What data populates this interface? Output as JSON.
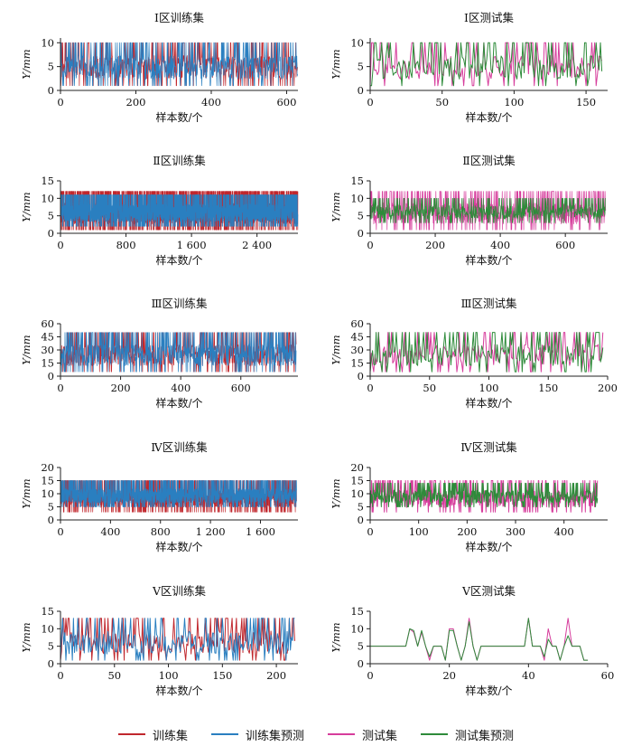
{
  "colors": {
    "train": "#c0272d",
    "train_pred": "#2a7fc0",
    "test": "#d63d9c",
    "test_pred": "#2e8b3a",
    "axis": "#222222"
  },
  "legend": [
    {
      "label": "训练集",
      "color": "#c0272d"
    },
    {
      "label": "训练集预测",
      "color": "#2a7fc0"
    },
    {
      "label": "测试集",
      "color": "#d63d9c"
    },
    {
      "label": "测试集预测",
      "color": "#2e8b3a"
    }
  ],
  "chart_data": [
    {
      "type": "line",
      "title": "Ⅰ区训练集",
      "xlabel": "样本数/个",
      "ylabel": "Y/mm",
      "xlim": [
        0,
        630
      ],
      "ylim": [
        0,
        11
      ],
      "xticks": [
        0,
        200,
        400,
        600
      ],
      "xtick_labels": [
        "0",
        "200",
        "400",
        "600"
      ],
      "yticks": [
        0,
        5,
        10
      ],
      "series": [
        {
          "name": "训练集",
          "kind": "train",
          "n": 630,
          "min": 1,
          "max": 10,
          "seed": 11
        },
        {
          "name": "训练集预测",
          "kind": "train_pred",
          "n": 630,
          "min": 1,
          "max": 10,
          "seed": 12
        }
      ]
    },
    {
      "type": "line",
      "title": "Ⅰ区测试集",
      "xlabel": "样本数/个",
      "ylabel": "Y/mm",
      "xlim": [
        0,
        165
      ],
      "ylim": [
        0,
        11
      ],
      "xticks": [
        0,
        50,
        100,
        150
      ],
      "xtick_labels": [
        "0",
        "50",
        "100",
        "150"
      ],
      "yticks": [
        0,
        5,
        10
      ],
      "series": [
        {
          "name": "测试集",
          "kind": "test",
          "n": 162,
          "min": 1,
          "max": 10,
          "seed": 21
        },
        {
          "name": "测试集预测",
          "kind": "test_pred",
          "n": 162,
          "min": 1,
          "max": 10,
          "seed": 22
        }
      ]
    },
    {
      "type": "line",
      "title": "Ⅱ区训练集",
      "xlabel": "样本数/个",
      "ylabel": "Y/mm",
      "xlim": [
        0,
        2900
      ],
      "ylim": [
        0,
        15
      ],
      "xticks": [
        0,
        800,
        1600,
        2400
      ],
      "xtick_labels": [
        "0",
        "800",
        "1 600",
        "2 400"
      ],
      "yticks": [
        0,
        5,
        10,
        15
      ],
      "series": [
        {
          "name": "训练集",
          "kind": "train",
          "n": 2900,
          "min": 1,
          "max": 12,
          "seed": 31
        },
        {
          "name": "训练集预测",
          "kind": "train_pred",
          "n": 2900,
          "min": 2,
          "max": 11,
          "seed": 32
        }
      ]
    },
    {
      "type": "line",
      "title": "Ⅱ区测试集",
      "xlabel": "样本数/个",
      "ylabel": "Y/mm",
      "xlim": [
        0,
        730
      ],
      "ylim": [
        0,
        15
      ],
      "xticks": [
        0,
        200,
        400,
        600
      ],
      "xtick_labels": [
        "0",
        "200",
        "400",
        "600"
      ],
      "yticks": [
        0,
        5,
        10,
        15
      ],
      "series": [
        {
          "name": "测试集",
          "kind": "test",
          "n": 725,
          "min": 1,
          "max": 12,
          "seed": 41
        },
        {
          "name": "测试集预测",
          "kind": "test_pred",
          "n": 725,
          "min": 3,
          "max": 10,
          "seed": 42
        }
      ]
    },
    {
      "type": "line",
      "title": "Ⅲ区训练集",
      "xlabel": "样本数/个",
      "ylabel": "Y/mm",
      "xlim": [
        0,
        790
      ],
      "ylim": [
        0,
        60
      ],
      "xticks": [
        0,
        200,
        400,
        600
      ],
      "xtick_labels": [
        "0",
        "200",
        "400",
        "600"
      ],
      "yticks": [
        0,
        15,
        30,
        45,
        60
      ],
      "series": [
        {
          "name": "训练集",
          "kind": "train",
          "n": 785,
          "min": 5,
          "max": 50,
          "seed": 51
        },
        {
          "name": "训练集预测",
          "kind": "train_pred",
          "n": 785,
          "min": 5,
          "max": 50,
          "seed": 52
        }
      ]
    },
    {
      "type": "line",
      "title": "Ⅲ区测试集",
      "xlabel": "样本数/个",
      "ylabel": "Y/mm",
      "xlim": [
        0,
        200
      ],
      "ylim": [
        0,
        60
      ],
      "xticks": [
        0,
        50,
        100,
        150,
        200
      ],
      "xtick_labels": [
        "0",
        "50",
        "100",
        "150",
        "200"
      ],
      "yticks": [
        0,
        15,
        30,
        45,
        60
      ],
      "series": [
        {
          "name": "测试集",
          "kind": "test",
          "n": 197,
          "min": 5,
          "max": 50,
          "seed": 61
        },
        {
          "name": "测试集预测",
          "kind": "test_pred",
          "n": 197,
          "min": 5,
          "max": 50,
          "seed": 62
        }
      ]
    },
    {
      "type": "line",
      "title": "Ⅳ区训练集",
      "xlabel": "样本数/个",
      "ylabel": "Y/mm",
      "xlim": [
        0,
        1900
      ],
      "ylim": [
        0,
        20
      ],
      "xticks": [
        0,
        400,
        800,
        1200,
        1600
      ],
      "xtick_labels": [
        "0",
        "400",
        "800",
        "1 200",
        "1 600"
      ],
      "yticks": [
        0,
        5,
        10,
        15,
        20
      ],
      "series": [
        {
          "name": "训练集",
          "kind": "train",
          "n": 1890,
          "min": 3,
          "max": 15,
          "seed": 71
        },
        {
          "name": "训练集预测",
          "kind": "train_pred",
          "n": 1890,
          "min": 5,
          "max": 15,
          "seed": 72
        }
      ]
    },
    {
      "type": "line",
      "title": "Ⅳ区测试集",
      "xlabel": "样本数/个",
      "ylabel": "Y/mm",
      "xlim": [
        0,
        490
      ],
      "ylim": [
        0,
        20
      ],
      "xticks": [
        0,
        100,
        200,
        300,
        400
      ],
      "xtick_labels": [
        "0",
        "100",
        "200",
        "300",
        "400"
      ],
      "yticks": [
        0,
        5,
        10,
        15,
        20
      ],
      "series": [
        {
          "name": "测试集",
          "kind": "test",
          "n": 470,
          "min": 3,
          "max": 15,
          "seed": 81
        },
        {
          "name": "测试集预测",
          "kind": "test_pred",
          "n": 470,
          "min": 5,
          "max": 14,
          "seed": 82
        }
      ]
    },
    {
      "type": "line",
      "title": "Ⅴ区训练集",
      "xlabel": "样本数/个",
      "ylabel": "Y/mm",
      "xlim": [
        0,
        220
      ],
      "ylim": [
        0,
        15
      ],
      "xticks": [
        0,
        50,
        100,
        150,
        200
      ],
      "xtick_labels": [
        "0",
        "50",
        "100",
        "150",
        "200"
      ],
      "yticks": [
        0,
        5,
        10,
        15
      ],
      "series": [
        {
          "name": "训练集",
          "kind": "train",
          "n": 218,
          "min": 1,
          "max": 13,
          "seed": 91
        },
        {
          "name": "训练集预测",
          "kind": "train_pred",
          "n": 218,
          "min": 1,
          "max": 13,
          "seed": 92
        }
      ]
    },
    {
      "type": "line",
      "title": "Ⅴ区测试集",
      "xlabel": "样本数/个",
      "ylabel": "Y/mm",
      "xlim": [
        0,
        60
      ],
      "ylim": [
        0,
        15
      ],
      "xticks": [
        0,
        20,
        40,
        60
      ],
      "xtick_labels": [
        "0",
        "20",
        "40",
        "60"
      ],
      "yticks": [
        0,
        5,
        10,
        15
      ],
      "series": [
        {
          "name": "测试集",
          "kind": "test",
          "n": 56,
          "values": [
            5,
            5,
            5,
            5,
            5,
            5,
            5,
            5,
            5,
            5,
            10,
            9,
            5,
            9,
            5,
            1,
            5,
            5,
            5,
            1,
            10,
            10,
            5,
            1,
            5,
            13,
            5,
            1,
            5,
            5,
            5,
            5,
            5,
            5,
            5,
            5,
            5,
            5,
            5,
            5,
            13,
            5,
            5,
            5,
            1,
            10,
            5,
            5,
            1,
            5,
            13,
            5,
            5,
            5,
            1,
            1
          ]
        },
        {
          "name": "测试集预测",
          "kind": "test_pred",
          "n": 56,
          "values": [
            5,
            5,
            5,
            5,
            5,
            5,
            5,
            5,
            5,
            5,
            10,
            9.5,
            5,
            9.5,
            5,
            2,
            5,
            5,
            5,
            1,
            9.5,
            9.5,
            5,
            1,
            5,
            12,
            5,
            1,
            5,
            5,
            5,
            5,
            5,
            5,
            5,
            5,
            5,
            5,
            5,
            5,
            13,
            5,
            5,
            5,
            2,
            7,
            5,
            5,
            1,
            5,
            8,
            5,
            5,
            5,
            1,
            1
          ]
        }
      ]
    }
  ]
}
